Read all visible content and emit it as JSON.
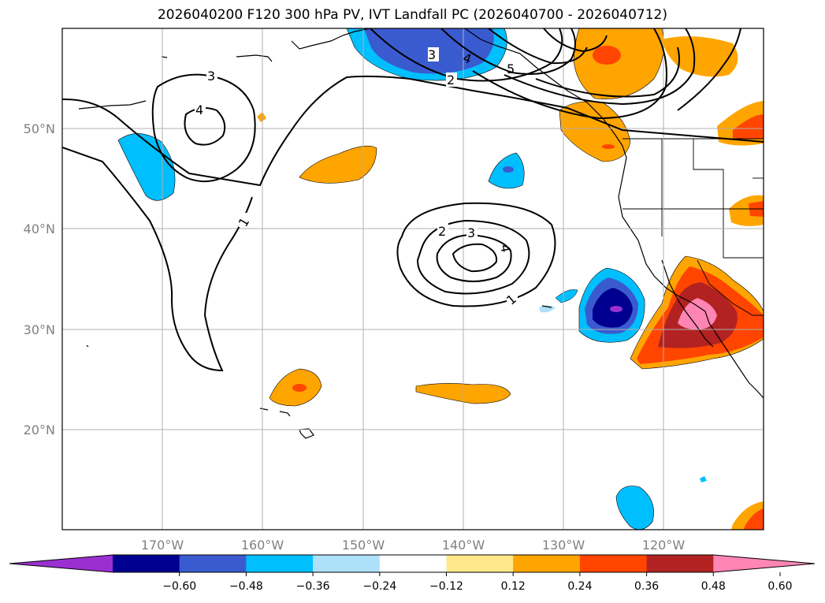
{
  "title": "2026040200 F120 300 hPa PV, IVT Landfall PC (2026040700 - 2026040712)",
  "lat_labels": [
    "50°N",
    "40°N",
    "30°N",
    "20°N"
  ],
  "lon_labels": [
    "170°W",
    "160°W",
    "150°W",
    "140°W",
    "130°W",
    "120°W"
  ],
  "colorbar": {
    "ticks": [
      "−0.60",
      "−0.48",
      "−0.36",
      "−0.24",
      "−0.12",
      "0.12",
      "0.24",
      "0.36",
      "0.48",
      "0.60"
    ],
    "colors": [
      "#9b30d0",
      "#000090",
      "#3a5bd0",
      "#00bfff",
      "#aee0fa",
      "#ffffff",
      "#ffe98a",
      "#ffa500",
      "#ff4500",
      "#b22222",
      "#ff85b4"
    ]
  },
  "contour_labels": [
    "3",
    "4",
    "1",
    "3",
    "4",
    "5",
    "2",
    "2",
    "3",
    "4",
    "1"
  ],
  "colors": {
    "coast": "#000000",
    "grid": "#b0b0b0",
    "contour": "#000000"
  }
}
